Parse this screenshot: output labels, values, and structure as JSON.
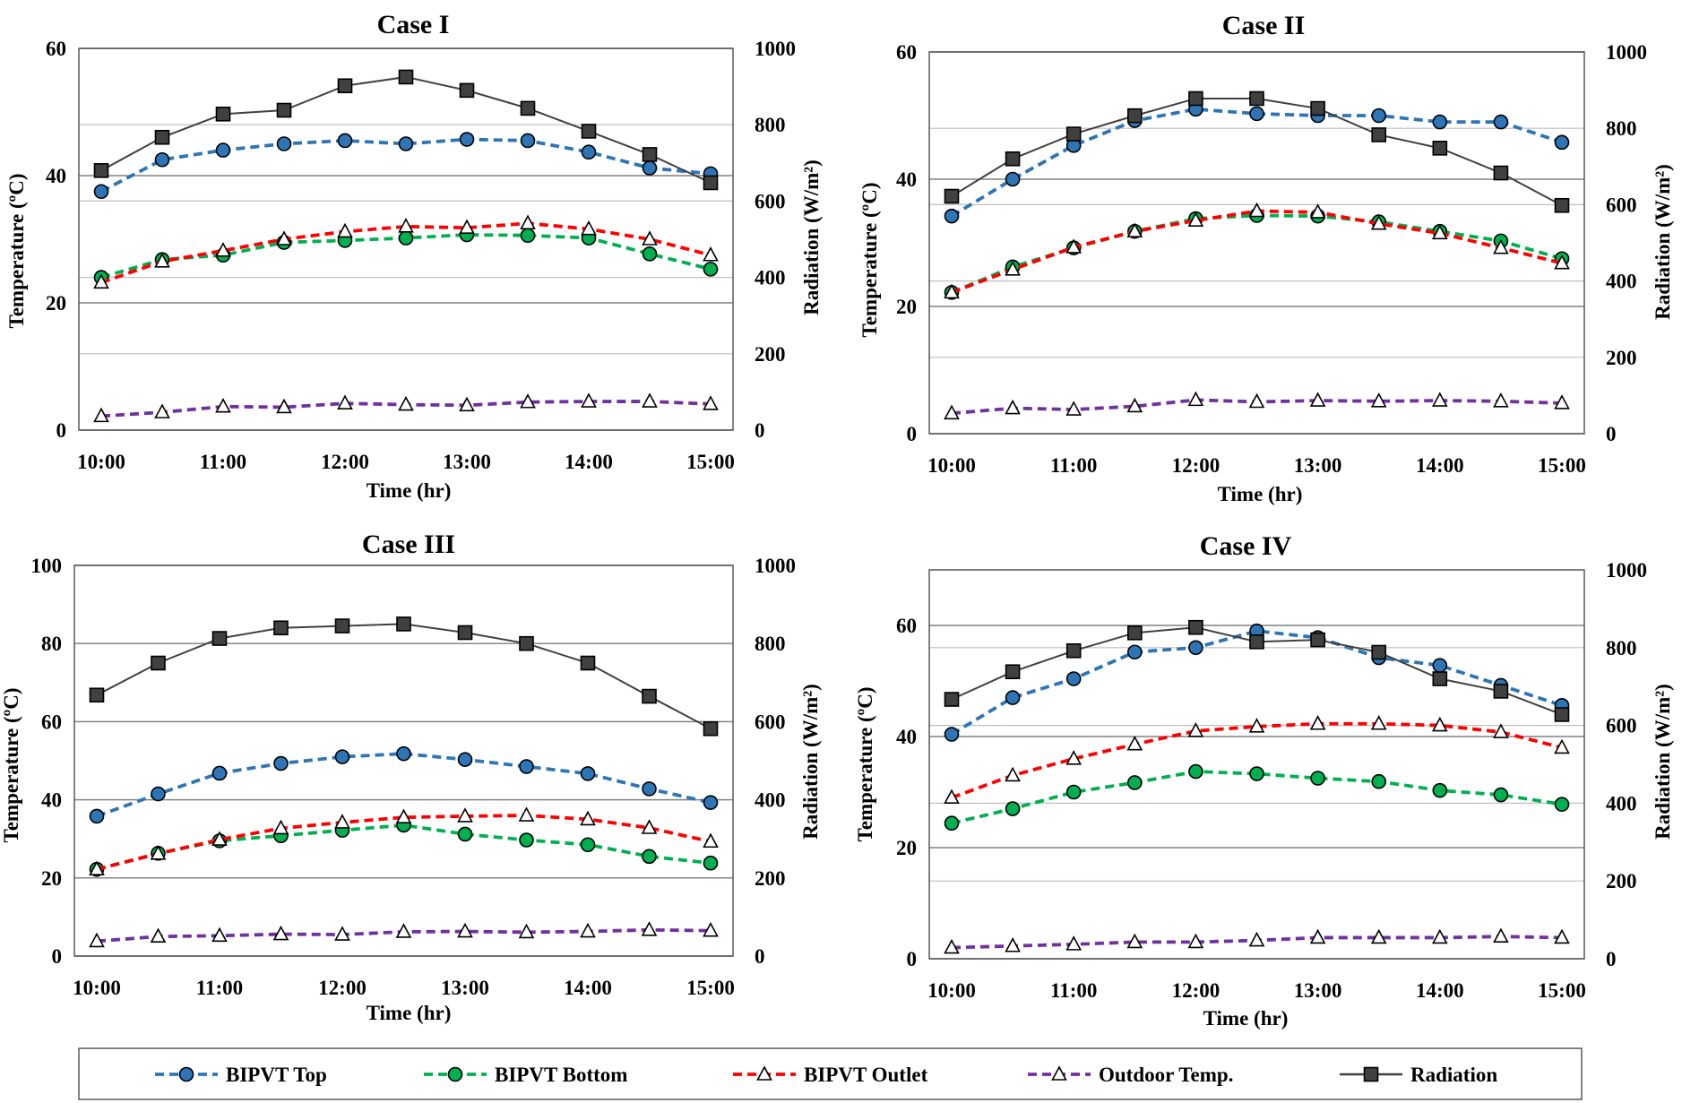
{
  "colors": {
    "bipvt_top": "#2E75B6",
    "bipvt_bottom": "#00B050",
    "bipvt_outlet": "#FF0000",
    "outdoor": "#7030A0",
    "radiation": "#404040",
    "gridline": "#A6A6A6"
  },
  "legend": {
    "items": [
      {
        "key": "bipvt_top",
        "label": "BIPVT Top",
        "marker": "circle"
      },
      {
        "key": "bipvt_bottom",
        "label": "BIPVT Bottom",
        "marker": "circle"
      },
      {
        "key": "bipvt_outlet",
        "label": "BIPVT Outlet",
        "marker": "triangle"
      },
      {
        "key": "outdoor",
        "label": "Outdoor Temp.",
        "marker": "triangle"
      },
      {
        "key": "radiation",
        "label": "Radiation",
        "marker": "square"
      }
    ]
  },
  "chart_data": [
    {
      "type": "line",
      "title": "Case I",
      "xlabel": "Time (hr)",
      "ylabel": "Temperature (ºC)",
      "y2label": "Radiation (W/m²)",
      "x": [
        10,
        10.5,
        11,
        11.5,
        12,
        12.5,
        13,
        13.5,
        14,
        14.5,
        15
      ],
      "xticks": [
        "10:00",
        "11:00",
        "12:00",
        "13:00",
        "14:00",
        "15:00"
      ],
      "ylim": [
        0,
        60
      ],
      "yticks": [
        0,
        20,
        40,
        60
      ],
      "y2lim": [
        0,
        1000
      ],
      "y2ticks": [
        0,
        200,
        400,
        600,
        800,
        1000
      ],
      "series": [
        {
          "key": "bipvt_top",
          "name": "BIPVT Top",
          "values": [
            37.5,
            42.5,
            44,
            45,
            45.5,
            45,
            45.7,
            45.5,
            43.7,
            41.2,
            40.3
          ]
        },
        {
          "key": "bipvt_bottom",
          "name": "BIPVT Bottom",
          "values": [
            24,
            26.8,
            27.5,
            29.5,
            29.8,
            30.2,
            30.7,
            30.6,
            30.2,
            27.7,
            25.3
          ]
        },
        {
          "key": "bipvt_outlet",
          "name": "BIPVT Outlet",
          "values": [
            23.2,
            26.5,
            28.2,
            30,
            31.2,
            32,
            31.8,
            32.5,
            31.6,
            30,
            27.5
          ]
        },
        {
          "key": "outdoor",
          "name": "Outdoor Temp.",
          "values": [
            2.2,
            2.8,
            3.7,
            3.6,
            4.2,
            4.0,
            3.9,
            4.4,
            4.5,
            4.5,
            4.1
          ]
        },
        {
          "key": "radiation",
          "name": "Radiation",
          "axis": "right",
          "values": [
            680,
            767,
            828,
            838,
            902,
            925,
            890,
            843,
            783,
            722,
            648
          ]
        }
      ]
    },
    {
      "type": "line",
      "title": "Case II",
      "xlabel": "Time (hr)",
      "ylabel": "Temperature (ºC)",
      "y2label": "Radiation (W/m²)",
      "x": [
        10,
        10.5,
        11,
        11.5,
        12,
        12.5,
        13,
        13.5,
        14,
        14.5,
        15
      ],
      "xticks": [
        "10:00",
        "11:00",
        "12:00",
        "13:00",
        "14:00",
        "15:00"
      ],
      "ylim": [
        0,
        60
      ],
      "yticks": [
        0,
        20,
        40,
        60
      ],
      "y2lim": [
        0,
        1000
      ],
      "y2ticks": [
        0,
        200,
        400,
        600,
        800,
        1000
      ],
      "series": [
        {
          "key": "bipvt_top",
          "name": "BIPVT Top",
          "values": [
            34.2,
            40,
            45.3,
            49.2,
            51,
            50.3,
            50,
            50,
            49,
            49,
            45.8
          ]
        },
        {
          "key": "bipvt_bottom",
          "name": "BIPVT Bottom",
          "values": [
            22.2,
            26.2,
            29.2,
            31.8,
            33.8,
            34.3,
            34.2,
            33.3,
            31.8,
            30.3,
            27.5
          ]
        },
        {
          "key": "bipvt_outlet",
          "name": "BIPVT Outlet",
          "values": [
            22.2,
            25.8,
            29.3,
            31.8,
            33.5,
            35,
            34.8,
            33,
            31.5,
            29.2,
            26.8
          ]
        },
        {
          "key": "outdoor",
          "name": "Outdoor Temp.",
          "values": [
            3.2,
            4.0,
            3.8,
            4.3,
            5.3,
            5.0,
            5.2,
            5.1,
            5.2,
            5.1,
            4.8
          ]
        },
        {
          "key": "radiation",
          "name": "Radiation",
          "axis": "right",
          "values": [
            622,
            720,
            785,
            833,
            878,
            878,
            852,
            783,
            748,
            683,
            598
          ]
        }
      ]
    },
    {
      "type": "line",
      "title": "Case III",
      "xlabel": "Time (hr)",
      "ylabel": "Temperature (ºC)",
      "y2label": "Radiation (W/m²)",
      "x": [
        10,
        10.5,
        11,
        11.5,
        12,
        12.5,
        13,
        13.5,
        14,
        14.5,
        15
      ],
      "xticks": [
        "10:00",
        "11:00",
        "12:00",
        "13:00",
        "14:00",
        "15:00"
      ],
      "ylim": [
        0,
        100
      ],
      "yticks": [
        0,
        20,
        40,
        60,
        80,
        100
      ],
      "y2lim": [
        0,
        1000
      ],
      "y2ticks": [
        0,
        200,
        400,
        600,
        800,
        1000
      ],
      "series": [
        {
          "key": "bipvt_top",
          "name": "BIPVT Top",
          "values": [
            35.8,
            41.5,
            46.8,
            49.3,
            51,
            51.8,
            50.3,
            48.5,
            46.7,
            42.8,
            39.3
          ]
        },
        {
          "key": "bipvt_bottom",
          "name": "BIPVT Bottom",
          "values": [
            22.2,
            26.3,
            29.5,
            30.8,
            32.2,
            33.5,
            31.2,
            29.7,
            28.5,
            25.5,
            23.8
          ]
        },
        {
          "key": "bipvt_outlet",
          "name": "BIPVT Outlet",
          "values": [
            22.2,
            26.2,
            29.8,
            32.7,
            34.2,
            35.5,
            35.8,
            36,
            35,
            32.8,
            29.3
          ]
        },
        {
          "key": "outdoor",
          "name": "Outdoor Temp.",
          "values": [
            3.8,
            5.0,
            5.2,
            5.6,
            5.5,
            6.2,
            6.3,
            6.1,
            6.3,
            6.7,
            6.5
          ]
        },
        {
          "key": "radiation",
          "name": "Radiation",
          "axis": "right",
          "values": [
            668,
            750,
            813,
            840,
            845,
            850,
            828,
            800,
            750,
            665,
            582
          ]
        }
      ]
    },
    {
      "type": "line",
      "title": "Case IV",
      "xlabel": "Time (hr)",
      "ylabel": "Temperature (ºC)",
      "y2label": "Radiation (W/m²)",
      "x": [
        10,
        10.5,
        11,
        11.5,
        12,
        12.5,
        13,
        13.5,
        14,
        14.5,
        15
      ],
      "xticks": [
        "10:00",
        "11:00",
        "12:00",
        "13:00",
        "14:00",
        "15:00"
      ],
      "ylim": [
        0,
        70
      ],
      "yticks": [
        0,
        20,
        40,
        60
      ],
      "y2lim": [
        0,
        1000
      ],
      "y2ticks": [
        0,
        200,
        400,
        600,
        800,
        1000
      ],
      "series": [
        {
          "key": "bipvt_top",
          "name": "BIPVT Top",
          "values": [
            40.4,
            47,
            50.4,
            55.2,
            56,
            59,
            57.8,
            54.2,
            52.8,
            49.2,
            45.6
          ]
        },
        {
          "key": "bipvt_bottom",
          "name": "BIPVT Bottom",
          "values": [
            24.4,
            27,
            30,
            31.7,
            33.7,
            33.3,
            32.5,
            31.9,
            30.3,
            29.5,
            27.8
          ]
        },
        {
          "key": "bipvt_outlet",
          "name": "BIPVT Outlet",
          "values": [
            29,
            33,
            36,
            38.6,
            41,
            41.8,
            42.3,
            42.3,
            42,
            40.8,
            38
          ]
        },
        {
          "key": "outdoor",
          "name": "Outdoor Temp.",
          "values": [
            2.0,
            2.3,
            2.6,
            3.0,
            3.0,
            3.3,
            3.8,
            3.8,
            3.8,
            4.0,
            3.8
          ]
        },
        {
          "key": "radiation",
          "name": "Radiation",
          "axis": "right",
          "values": [
            667,
            738,
            792,
            838,
            852,
            815,
            820,
            788,
            720,
            688,
            628
          ]
        }
      ]
    }
  ]
}
